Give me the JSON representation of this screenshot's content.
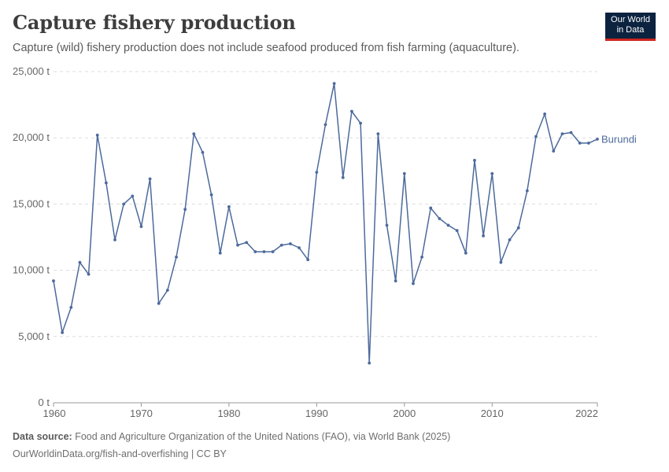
{
  "header": {
    "title": "Capture fishery production",
    "subtitle": "Capture (wild) fishery production does not include seafood produced from fish farming (aquaculture).",
    "logo_line1": "Our World",
    "logo_line2": "in Data"
  },
  "footer": {
    "source_label": "Data source:",
    "source_text": "Food and Agriculture Organization of the United Nations (FAO), via World Bank (2025)",
    "license": "OurWorldinData.org/fish-and-overfishing | CC BY"
  },
  "colors": {
    "series": "#4c6a9c",
    "grid": "#dddddd",
    "axis": "#666666"
  },
  "chart_data": {
    "type": "line",
    "title": "Capture fishery production",
    "xlabel": "",
    "ylabel": "",
    "xlim": [
      1960,
      2022
    ],
    "ylim": [
      0,
      25000
    ],
    "y_ticks": [
      0,
      5000,
      10000,
      15000,
      20000,
      25000
    ],
    "y_tick_labels": [
      "0 t",
      "5,000 t",
      "10,000 t",
      "15,000 t",
      "20,000 t",
      "25,000 t"
    ],
    "x_ticks": [
      1960,
      1970,
      1980,
      1990,
      2000,
      2010,
      2022
    ],
    "x_tick_labels": [
      "1960",
      "1970",
      "1980",
      "1990",
      "2000",
      "2010",
      "2022"
    ],
    "grid": true,
    "series": [
      {
        "name": "Burundi",
        "x": [
          1960,
          1961,
          1962,
          1963,
          1964,
          1965,
          1966,
          1967,
          1968,
          1969,
          1970,
          1971,
          1972,
          1973,
          1974,
          1975,
          1976,
          1977,
          1978,
          1979,
          1980,
          1981,
          1982,
          1983,
          1984,
          1985,
          1986,
          1987,
          1988,
          1989,
          1990,
          1991,
          1992,
          1993,
          1994,
          1995,
          1996,
          1997,
          1998,
          1999,
          2000,
          2001,
          2002,
          2003,
          2004,
          2005,
          2006,
          2007,
          2008,
          2009,
          2010,
          2011,
          2012,
          2013,
          2014,
          2015,
          2016,
          2017,
          2018,
          2019,
          2020,
          2021,
          2022
        ],
        "values": [
          9200,
          5300,
          7200,
          10600,
          9700,
          20200,
          16600,
          12300,
          15000,
          15600,
          13300,
          16900,
          7500,
          8500,
          11000,
          14600,
          20300,
          18900,
          15700,
          11300,
          14800,
          11900,
          12100,
          11400,
          11400,
          11400,
          11900,
          12000,
          11700,
          10800,
          17400,
          21000,
          24100,
          17000,
          22000,
          21100,
          3000,
          20300,
          13400,
          9200,
          17300,
          9000,
          11000,
          14700,
          13900,
          13400,
          13000,
          11300,
          18300,
          12600,
          17300,
          10600,
          12300,
          13200,
          16000,
          20100,
          21800,
          19000,
          20300,
          20400,
          19600,
          19600,
          19900
        ]
      }
    ]
  }
}
